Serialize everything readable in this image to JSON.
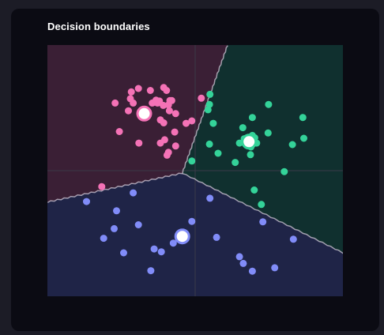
{
  "header": {
    "title": "Decision boundaries"
  },
  "colors": {
    "pink": "#f472b6",
    "green": "#34d399",
    "blue": "#818cf8",
    "pink_region": "#3a1f35",
    "green_region": "#10302f",
    "blue_region": "#1f2447",
    "boundary": "#cfc7d6",
    "axis": "#3a3a48"
  },
  "chart_data": {
    "type": "scatter",
    "title": "Decision boundaries",
    "xlim": [
      -3.1,
      3.1
    ],
    "ylim": [
      -2.6,
      2.6
    ],
    "axes_at_origin": true,
    "grid": false,
    "legend": "none",
    "boundary_junction": [
      -0.27,
      -0.05
    ],
    "boundary_ends": [
      [
        0.68,
        2.6
      ],
      [
        -3.1,
        -0.65
      ],
      [
        3.1,
        -1.7
      ]
    ],
    "series": [
      {
        "color": "pink",
        "centroid": [
          -1.07,
          1.18
        ],
        "points": [
          [
            -1.68,
            1.4
          ],
          [
            -1.4,
            1.24
          ],
          [
            -1.3,
            1.4
          ],
          [
            -1.34,
            1.63
          ],
          [
            -1.19,
            1.7
          ],
          [
            -0.94,
            1.66
          ],
          [
            -0.66,
            1.72
          ],
          [
            -0.6,
            1.66
          ],
          [
            -0.82,
            1.46
          ],
          [
            -0.75,
            1.44
          ],
          [
            -0.79,
            1.4
          ],
          [
            -0.9,
            1.4
          ],
          [
            -0.53,
            1.45
          ],
          [
            -0.49,
            1.45
          ],
          [
            -0.67,
            1.35
          ],
          [
            -0.56,
            1.36
          ],
          [
            -0.41,
            1.18
          ],
          [
            -0.54,
            1.24
          ],
          [
            -0.66,
            0.99
          ],
          [
            -0.73,
            1.05
          ],
          [
            -0.64,
            0.64
          ],
          [
            -0.73,
            0.57
          ],
          [
            -1.18,
            0.57
          ],
          [
            -0.43,
            0.8
          ],
          [
            -0.56,
            0.38
          ],
          [
            -0.59,
            0.32
          ],
          [
            0.13,
            1.5
          ],
          [
            -0.07,
            1.03
          ],
          [
            -1.36,
            1.49
          ],
          [
            -1.59,
            0.81
          ],
          [
            -0.19,
            0.98
          ],
          [
            -0.41,
            0.51
          ],
          [
            -1.96,
            -0.33
          ]
        ]
      },
      {
        "color": "green",
        "centroid": [
          1.13,
          0.6
        ],
        "points": [
          [
            0.31,
            1.58
          ],
          [
            0.3,
            1.37
          ],
          [
            0.27,
            1.26
          ],
          [
            0.38,
            0.98
          ],
          [
            1.03,
            0.66
          ],
          [
            1.2,
            0.73
          ],
          [
            1.13,
            0.68
          ],
          [
            1.0,
            0.89
          ],
          [
            1.17,
            0.49
          ],
          [
            1.25,
            0.68
          ],
          [
            1.53,
            0.78
          ],
          [
            2.26,
            1.1
          ],
          [
            2.04,
            0.54
          ],
          [
            2.28,
            0.67
          ],
          [
            1.16,
            0.33
          ],
          [
            0.48,
            0.36
          ],
          [
            0.3,
            0.55
          ],
          [
            0.84,
            0.17
          ],
          [
            -0.07,
            0.2
          ],
          [
            1.54,
            1.37
          ],
          [
            1.2,
            1.1
          ],
          [
            1.87,
            -0.02
          ],
          [
            1.24,
            -0.4
          ],
          [
            1.39,
            -0.7
          ],
          [
            0.93,
            0.57
          ],
          [
            1.29,
            0.57
          ]
        ]
      },
      {
        "color": "blue",
        "centroid": [
          -0.27,
          -1.36
        ],
        "points": [
          [
            -2.28,
            -0.64
          ],
          [
            -1.65,
            -0.83
          ],
          [
            -1.7,
            -1.2
          ],
          [
            -1.92,
            -1.4
          ],
          [
            -1.5,
            -1.7
          ],
          [
            -1.19,
            -1.12
          ],
          [
            -0.86,
            -1.62
          ],
          [
            -0.71,
            -1.68
          ],
          [
            -0.93,
            -2.07
          ],
          [
            -0.46,
            -1.5
          ],
          [
            -0.07,
            -1.05
          ],
          [
            0.45,
            -1.38
          ],
          [
            0.31,
            -0.57
          ],
          [
            -1.3,
            -0.46
          ],
          [
            0.93,
            -1.78
          ],
          [
            1.01,
            -1.92
          ],
          [
            1.2,
            -2.08
          ],
          [
            1.42,
            -1.06
          ],
          [
            1.67,
            -2.01
          ],
          [
            2.06,
            -1.42
          ]
        ]
      }
    ]
  }
}
